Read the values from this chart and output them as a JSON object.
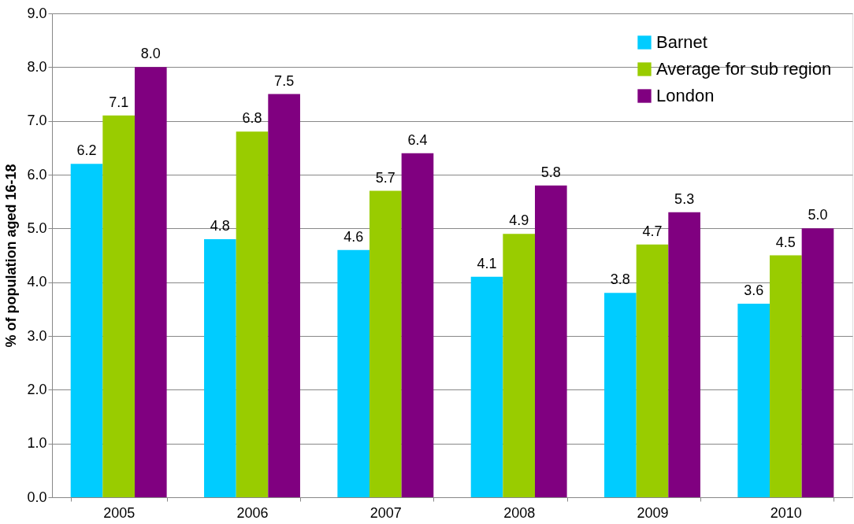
{
  "chart_data": {
    "type": "bar",
    "ylabel": "% of population aged 16-18",
    "categories": [
      "2005",
      "2006",
      "2007",
      "2008",
      "2009",
      "2010"
    ],
    "series": [
      {
        "name": "Barnet",
        "color": "#00ccff",
        "values": [
          6.2,
          4.8,
          4.6,
          4.1,
          3.8,
          3.6
        ],
        "value_labels": [
          "6.2",
          "4.8",
          "4.6",
          "4.1",
          "3.8",
          "3.6"
        ]
      },
      {
        "name": "Average for sub region",
        "color": "#99cc00",
        "values": [
          7.1,
          6.8,
          5.7,
          4.9,
          4.7,
          4.5
        ],
        "value_labels": [
          "7.1",
          "6.8",
          "5.7",
          "4.9",
          "4.7",
          "4.5"
        ]
      },
      {
        "name": "London",
        "color": "#800080",
        "values": [
          8.0,
          7.5,
          6.4,
          5.8,
          5.3,
          5.0
        ],
        "value_labels": [
          "8.0",
          "7.5",
          "6.4",
          "5.8",
          "5.3",
          "5.0"
        ]
      }
    ],
    "ylim": [
      0,
      9
    ],
    "yticks": [
      {
        "value": 0,
        "label": "0.0"
      },
      {
        "value": 1,
        "label": "1.0"
      },
      {
        "value": 2,
        "label": "2.0"
      },
      {
        "value": 3,
        "label": "3.0"
      },
      {
        "value": 4,
        "label": "4.0"
      },
      {
        "value": 5,
        "label": "5.0"
      },
      {
        "value": 6,
        "label": "6.0"
      },
      {
        "value": 7,
        "label": "7.0"
      },
      {
        "value": 8,
        "label": "8.0"
      },
      {
        "value": 9,
        "label": "9.0"
      }
    ],
    "grid": "y",
    "legend": "top right"
  }
}
